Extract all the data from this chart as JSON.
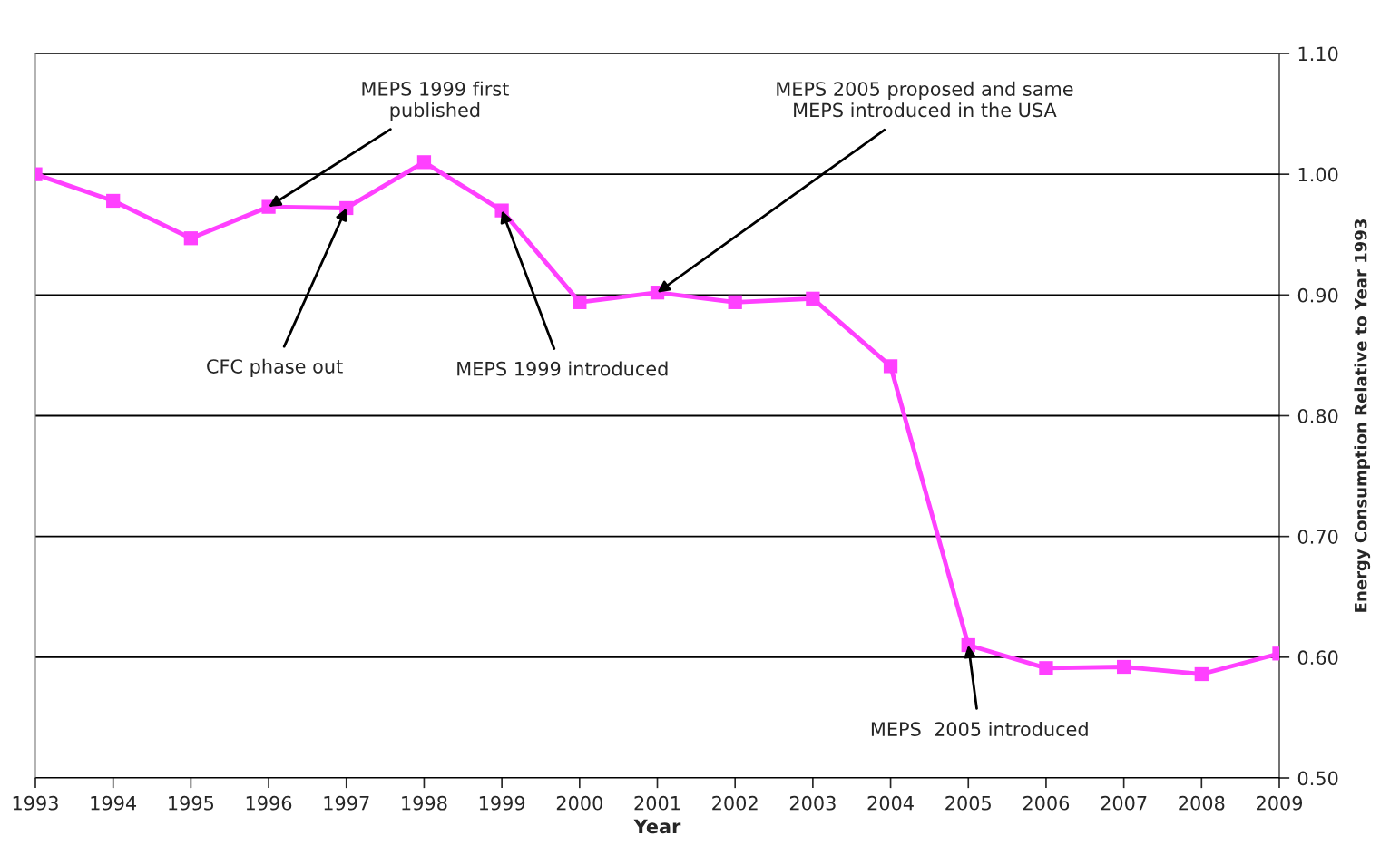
{
  "chart_data": {
    "type": "line",
    "xlabel": "Year",
    "ylabel": "Energy Consumption Relative to Year 1993",
    "x": [
      1993,
      1994,
      1995,
      1996,
      1997,
      1998,
      1999,
      2000,
      2001,
      2002,
      2003,
      2004,
      2005,
      2006,
      2007,
      2008,
      2009
    ],
    "series": [
      {
        "color": "#ff40ff",
        "values": [
          1.0,
          0.978,
          0.947,
          0.973,
          0.972,
          1.01,
          0.97,
          0.894,
          0.902,
          0.894,
          0.897,
          0.841,
          0.61,
          0.591,
          0.592,
          0.586,
          0.603
        ]
      }
    ],
    "xlim": [
      1993,
      2009
    ],
    "xticks": [
      1993,
      1994,
      1995,
      1996,
      1997,
      1998,
      1999,
      2000,
      2001,
      2002,
      2003,
      2004,
      2005,
      2006,
      2007,
      2008,
      2009
    ],
    "ylim": [
      0.5,
      1.1
    ],
    "yticks": [
      {
        "value": 0.5,
        "label": "0.50"
      },
      {
        "value": 0.6,
        "label": "0.60"
      },
      {
        "value": 0.7,
        "label": "0.70"
      },
      {
        "value": 0.8,
        "label": "0.80"
      },
      {
        "value": 0.9,
        "label": "0.90"
      },
      {
        "value": 1.0,
        "label": "1.00"
      },
      {
        "value": 1.1,
        "label": "1.10"
      }
    ],
    "grid": "y",
    "marker": "square",
    "line_style": "solid",
    "legend": false,
    "annotations": [
      {
        "text": "MEPS 1999 first\npublished",
        "x": 1996,
        "y": 0.973
      },
      {
        "text": "CFC phase out",
        "x": 1997,
        "y": 0.972
      },
      {
        "text": "MEPS 1999 introduced",
        "x": 1999,
        "y": 0.97
      },
      {
        "text": "MEPS 2005 proposed and same\nMEPS introduced in the USA",
        "x": 2001,
        "y": 0.902
      },
      {
        "text": "MEPS  2005 introduced",
        "x": 2005,
        "y": 0.61
      }
    ]
  }
}
